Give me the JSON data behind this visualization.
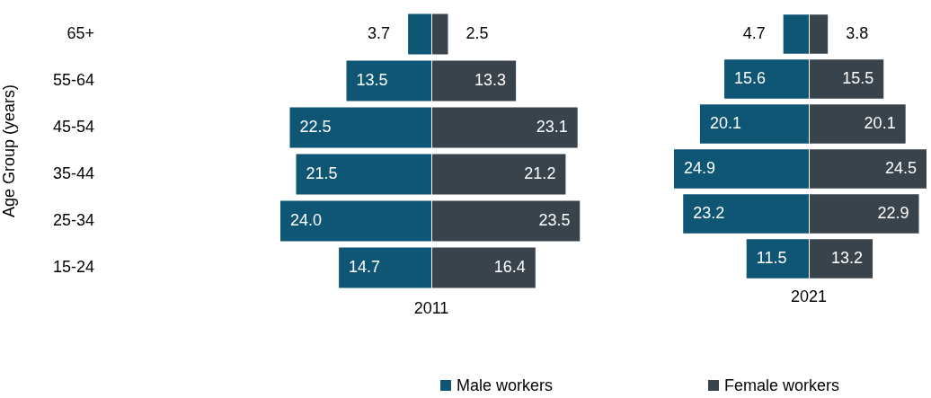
{
  "chart_data": [
    {
      "type": "bar",
      "orientation": "horizontal",
      "ylabel": "Age Group (years)",
      "xlabel": "2011",
      "categories": [
        "65+",
        "55-64",
        "45-54",
        "35-44",
        "25-34",
        "15-24"
      ],
      "xlim": [
        24.0,
        0
      ],
      "tick_labels": "y",
      "grid": false,
      "legend": false,
      "series": [
        {
          "color": "#0f5574",
          "values": [
            3.7,
            13.5,
            22.5,
            21.5,
            24.0,
            14.7
          ],
          "value_labels": [
            "3.7",
            "13.5",
            "22.5",
            "21.5",
            "24.0",
            "14.7"
          ]
        }
      ]
    },
    {
      "type": "bar",
      "orientation": "horizontal",
      "categories": [
        null,
        null,
        null,
        null,
        null,
        null
      ],
      "xlim": [
        0,
        23.5
      ],
      "tick_labels": false,
      "grid": false,
      "legend": false,
      "series": [
        {
          "color": "#38434b",
          "values": [
            2.5,
            13.3,
            23.1,
            21.2,
            23.5,
            16.4
          ],
          "value_labels": [
            "2.5",
            "13.3",
            "23.1",
            "21.2",
            "23.5",
            "16.4"
          ]
        }
      ]
    },
    {
      "type": "bar",
      "orientation": "horizontal",
      "xlabel": "2021",
      "categories": [
        null,
        null,
        null,
        null,
        null,
        null
      ],
      "xlim": [
        24.9,
        0
      ],
      "tick_labels": false,
      "grid": false,
      "legend": "bottom",
      "series": [
        {
          "name": "Male workers",
          "color": "#0f5574",
          "values": [
            4.7,
            15.6,
            20.1,
            24.9,
            23.2,
            11.5
          ],
          "value_labels": [
            "4.7",
            "15.6",
            "20.1",
            "24.9",
            "23.2",
            "11.5"
          ]
        }
      ]
    },
    {
      "type": "bar",
      "orientation": "horizontal",
      "categories": [
        null,
        null,
        null,
        null,
        null,
        null
      ],
      "xlim": [
        0,
        24.5
      ],
      "tick_labels": false,
      "grid": false,
      "legend": "bottom",
      "series": [
        {
          "name": "Female workers",
          "color": "#38434b",
          "values": [
            3.8,
            15.5,
            20.1,
            24.5,
            22.9,
            13.2
          ],
          "value_labels": [
            "3.8",
            "15.5",
            "20.1",
            "24.5",
            "22.9",
            "13.2"
          ]
        }
      ]
    }
  ]
}
